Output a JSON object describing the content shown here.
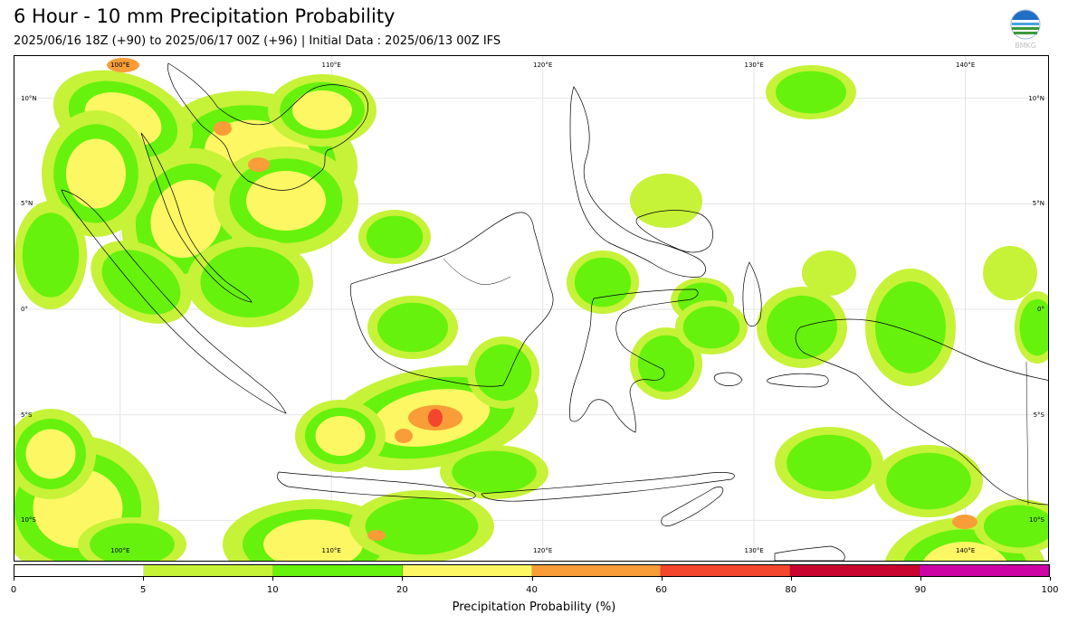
{
  "header": {
    "title": "6 Hour - 10 mm Precipitation Probability",
    "subtitle": "2025/06/16 18Z (+90) to 2025/06/17 00Z (+96) | Initial Data : 2025/06/13 00Z IFS",
    "logo_text": "BMKG"
  },
  "map": {
    "lon_range": [
      95,
      144
    ],
    "lat_range": [
      -12,
      12
    ],
    "gridlines": true,
    "top_lon_labels": [
      "100°E",
      "110°E",
      "120°E",
      "130°E",
      "140°E"
    ],
    "bottom_lon_labels": [
      "100°E",
      "110°E",
      "120°E",
      "130°E",
      "140°E"
    ],
    "left_lat_labels": [
      "10°N",
      "5°N",
      "0°",
      "5°S",
      "10°S"
    ],
    "right_lat_labels": [
      "10°N",
      "5°N",
      "0°",
      "5°S",
      "10°S"
    ],
    "colors": {
      "c5": "#c6f238",
      "c10": "#66f20c",
      "c20": "#fcf763",
      "c40": "#f99d38",
      "c60": "#f4452d",
      "c80": "#c8052e",
      "c90": "#cc04a6",
      "coast": "#000000"
    }
  },
  "colorbar": {
    "label": "Precipitation Probability (%)",
    "ticks": [
      "0",
      "5",
      "10",
      "20",
      "40",
      "60",
      "80",
      "90",
      "100"
    ],
    "colors": [
      "#ffffff",
      "#c6f238",
      "#66f20c",
      "#fcf763",
      "#f99d38",
      "#f4452d",
      "#c8052e",
      "#cc04a6"
    ]
  }
}
